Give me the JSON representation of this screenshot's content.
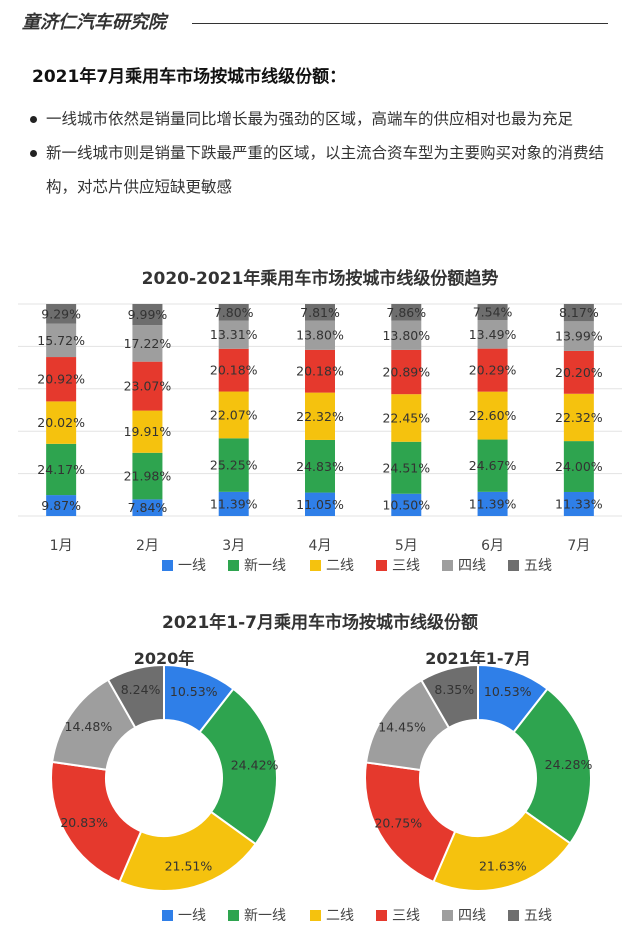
{
  "header": {
    "brand": "童济仁汽车研究院"
  },
  "headline": "2021年7月乘用车市场按城市线级份额：",
  "bullets": [
    "一线城市依然是销量同比增长最为强劲的区域，高端车的供应相对也最为充足",
    "新一线城市则是销量下跌最严重的区域，以主流合资车型为主要购买对象的消费结构，对芯片供应短缺更敏感"
  ],
  "colors": {
    "一线": "#2F7FE8",
    "新一线": "#2EA44F",
    "二线": "#F5C20E",
    "三线": "#E5392D",
    "四线": "#9E9E9E",
    "五线": "#6E6E6E"
  },
  "chart_data": [
    {
      "type": "bar",
      "stacked": true,
      "title": "2020-2021年乘用车市场按城市线级份额趋势",
      "categories": [
        "1月",
        "2月",
        "3月",
        "4月",
        "5月",
        "6月",
        "7月"
      ],
      "series": [
        {
          "name": "一线",
          "values": [
            9.87,
            7.84,
            11.39,
            11.05,
            10.5,
            11.39,
            11.33
          ],
          "labels": [
            "9.87%",
            "7.84%",
            "11.39%",
            "11.05%",
            "10.50%",
            "11.39%",
            "11.33%"
          ]
        },
        {
          "name": "新一线",
          "values": [
            24.17,
            21.98,
            25.25,
            24.83,
            24.51,
            24.67,
            24.0
          ],
          "labels": [
            "24.17%",
            "21.98%",
            "25.25%",
            "24.83%",
            "24.51%",
            "24.67%",
            "24.00%"
          ]
        },
        {
          "name": "二线",
          "values": [
            20.02,
            19.91,
            22.07,
            22.32,
            22.45,
            22.6,
            22.32
          ],
          "labels": [
            "20.02%",
            "19.91%",
            "22.07%",
            "22.32%",
            "22.45%",
            "22.60%",
            "22.32%"
          ]
        },
        {
          "name": "三线",
          "values": [
            20.92,
            23.07,
            20.18,
            20.18,
            20.89,
            20.29,
            20.2
          ],
          "labels": [
            "20.92%",
            "23.07%",
            "20.18%",
            "20.18%",
            "20.89%",
            "20.29%",
            "20.20%"
          ]
        },
        {
          "name": "四线",
          "values": [
            15.72,
            17.22,
            13.31,
            13.8,
            13.8,
            13.49,
            13.99
          ],
          "labels": [
            "15.72%",
            "17.22%",
            "13.31%",
            "13.80%",
            "13.80%",
            "13.49%",
            "13.99%"
          ]
        },
        {
          "name": "五线",
          "values": [
            9.29,
            9.99,
            7.8,
            7.81,
            7.86,
            7.54,
            8.17
          ],
          "labels": [
            "9.29%",
            "9.99%",
            "7.80%",
            "7.81%",
            "7.86%",
            "7.54%",
            "8.17%"
          ]
        }
      ],
      "ylim": [
        0,
        100
      ],
      "legend": "bottom",
      "grid": true
    },
    {
      "type": "pie",
      "donut": true,
      "title": "2021年1-7月乘用车市场按城市线级份额",
      "subtitle": "2020年",
      "categories": [
        "一线",
        "新一线",
        "二线",
        "三线",
        "四线",
        "五线"
      ],
      "values": [
        10.53,
        24.42,
        21.51,
        20.83,
        14.48,
        8.24
      ],
      "labels": [
        "10.53%",
        "24.42%",
        "21.51%",
        "20.83%",
        "14.48%",
        "8.24%"
      ],
      "legend": "bottom"
    },
    {
      "type": "pie",
      "donut": true,
      "title": "2021年1-7月乘用车市场按城市线级份额",
      "subtitle": "2021年1-7月",
      "categories": [
        "一线",
        "新一线",
        "二线",
        "三线",
        "四线",
        "五线"
      ],
      "values": [
        10.53,
        24.28,
        21.63,
        20.75,
        14.45,
        8.35
      ],
      "labels": [
        "10.53%",
        "24.28%",
        "21.63%",
        "20.75%",
        "14.45%",
        "8.35%"
      ],
      "legend": "bottom"
    }
  ]
}
